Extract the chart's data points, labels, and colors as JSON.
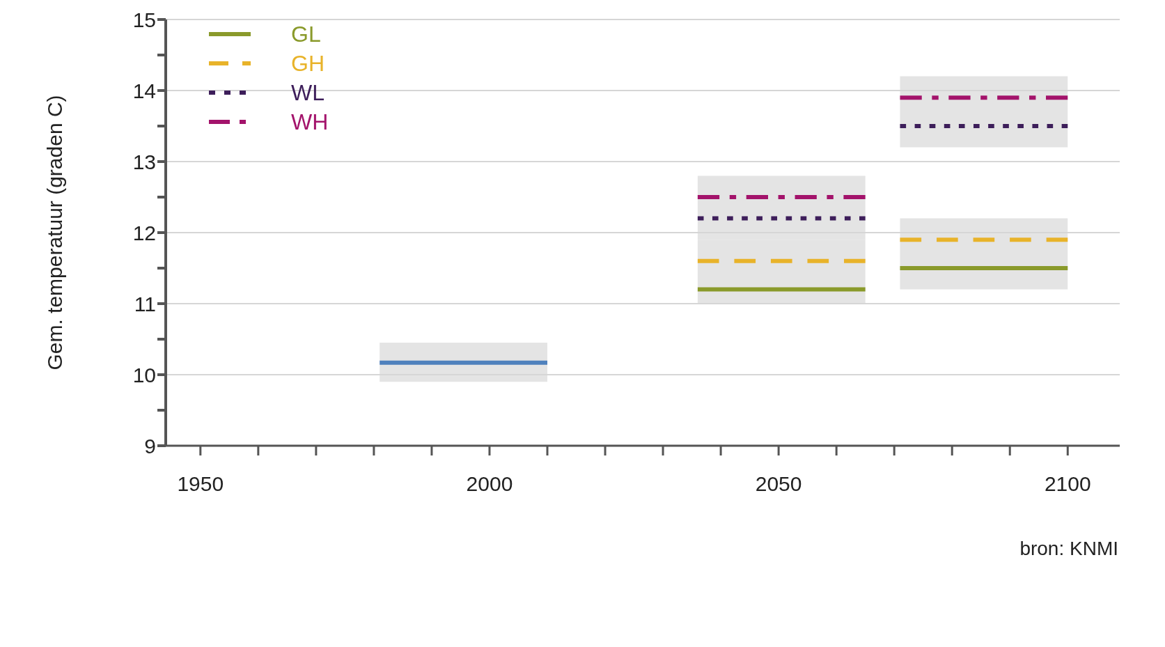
{
  "chart_data": {
    "type": "line",
    "ylabel": "Gem. temperatuur (graden C)",
    "annotations": [
      "bron: KNMI"
    ],
    "series": [
      {
        "color": "#4f81bd",
        "line_style": "solid",
        "x": [
          1981,
          2010
        ],
        "values": [
          10.17,
          10.17
        ],
        "lower": [
          9.9,
          9.9
        ],
        "upper": [
          10.45,
          10.45
        ]
      },
      {
        "name": "GL",
        "color": "#8a9a2b",
        "line_style": "solid",
        "x": [
          2036,
          2065,
          2068,
          2071,
          2100
        ],
        "values": [
          11.2,
          11.2,
          null,
          11.5,
          11.5
        ],
        "lower": [
          11.0,
          11.0,
          null,
          11.2,
          11.2
        ],
        "upper": [
          11.9,
          11.9,
          null,
          12.2,
          12.2
        ]
      },
      {
        "name": "GH",
        "color": "#e8b32a",
        "line_style": "dashed",
        "x": [
          2036,
          2065,
          2068,
          2071,
          2100
        ],
        "values": [
          11.6,
          11.6,
          null,
          11.9,
          11.9
        ]
      },
      {
        "name": "WL",
        "color": "#3d1e5a",
        "line_style": "dotted",
        "x": [
          2036,
          2065,
          2068,
          2071,
          2100
        ],
        "values": [
          12.2,
          12.2,
          null,
          13.5,
          13.5
        ],
        "lower": [
          11.9,
          11.9,
          null,
          13.2,
          13.2
        ],
        "upper": [
          12.8,
          12.8,
          null,
          14.2,
          14.2
        ]
      },
      {
        "name": "WH",
        "color": "#a3136b",
        "line_style": "dashdot",
        "x": [
          2036,
          2065,
          2068,
          2071,
          2100
        ],
        "values": [
          12.5,
          12.5,
          null,
          13.9,
          13.9
        ]
      }
    ],
    "xlim": [
      1944,
      2109
    ],
    "xticks": [
      1950,
      {
        "value": 1960,
        "label": null
      },
      {
        "value": 1970,
        "label": null
      },
      {
        "value": 1980,
        "label": null
      },
      {
        "value": 1990,
        "label": null
      },
      2000,
      {
        "value": 2010,
        "label": null
      },
      {
        "value": 2020,
        "label": null
      },
      {
        "value": 2030,
        "label": null
      },
      {
        "value": 2040,
        "label": null
      },
      2050,
      {
        "value": 2060,
        "label": null
      },
      {
        "value": 2070,
        "label": null
      },
      {
        "value": 2080,
        "label": null
      },
      {
        "value": 2090,
        "label": null
      },
      2100
    ],
    "ylim": [
      9,
      15
    ],
    "yticks": [
      9,
      {
        "value": 9.5,
        "label": null
      },
      10,
      {
        "value": 10.5,
        "label": null
      },
      11,
      {
        "value": 11.5,
        "label": null
      },
      12,
      {
        "value": 12.5,
        "label": null
      },
      13,
      {
        "value": 13.5,
        "label": null
      },
      14,
      {
        "value": 14.5,
        "label": null
      },
      15
    ],
    "grid": "y",
    "legend": "top left"
  }
}
